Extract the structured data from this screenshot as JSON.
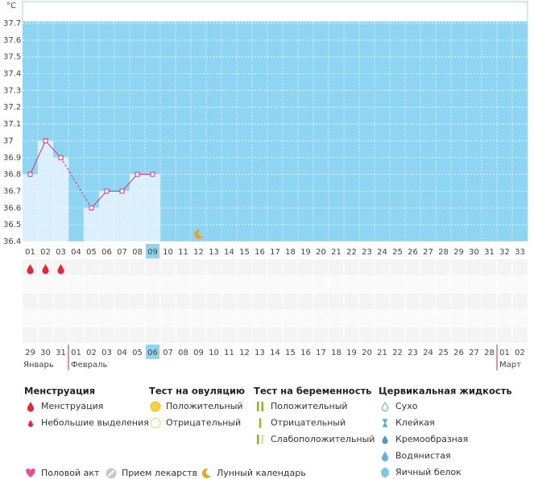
{
  "chart_data": {
    "type": "line",
    "unit_label": "°C",
    "categories": [
      "01",
      "02",
      "03",
      "04",
      "05",
      "06",
      "07",
      "08",
      "09",
      "10",
      "11",
      "12",
      "13",
      "14",
      "15",
      "16",
      "17",
      "18",
      "19",
      "20",
      "21",
      "22",
      "23",
      "24",
      "25",
      "26",
      "27",
      "28",
      "29",
      "30",
      "31",
      "32",
      "33"
    ],
    "values": [
      36.8,
      37,
      36.9,
      null,
      36.6,
      36.7,
      36.7,
      36.8,
      36.8,
      null,
      null,
      null,
      null,
      null,
      null,
      null,
      null,
      null,
      null,
      null,
      null,
      null,
      null,
      null,
      null,
      null,
      null,
      null,
      null,
      null,
      null,
      null,
      null
    ],
    "color": "#e0306a",
    "ylim": [
      36.4,
      37.7
    ],
    "yticks": [
      36.4,
      36.5,
      36.6,
      36.7,
      36.8,
      36.9,
      37,
      37.1,
      37.2,
      37.3,
      37.4,
      37.5,
      37.6,
      37.7
    ],
    "dates": [
      "29",
      "30",
      "31",
      "01",
      "02",
      "03",
      "04",
      "05",
      "06",
      "07",
      "08",
      "09",
      "10",
      "11",
      "12",
      "13",
      "14",
      "15",
      "16",
      "17",
      "18",
      "19",
      "20",
      "21",
      "22",
      "23",
      "24",
      "25",
      "26",
      "27",
      "28",
      "01",
      "02"
    ],
    "weekend_dates": [
      false,
      false,
      true,
      true,
      false,
      false,
      false,
      false,
      false,
      true,
      true,
      false,
      false,
      false,
      false,
      false,
      true,
      true,
      false,
      false,
      false,
      false,
      false,
      true,
      true,
      false,
      false,
      false,
      false,
      false,
      true,
      true,
      false
    ],
    "months": [
      {
        "name": "Январь",
        "start": "29"
      },
      {
        "name": "Февраль",
        "start": "01"
      },
      {
        "name": "Март",
        "start": "01"
      }
    ],
    "markers": {
      "menstruation": [
        "01",
        "02",
        "03"
      ],
      "moon": [
        "12"
      ]
    }
  },
  "legend": {
    "sections": [
      {
        "title": "Менструация",
        "items": [
          {
            "label": "Менструация",
            "icon": "drop"
          },
          {
            "label": "Небольшие выделения",
            "icon": "small-drop"
          }
        ]
      },
      {
        "title": "Тест на овуляцию",
        "items": [
          {
            "label": "Положительный",
            "icon": "yellow-circle"
          },
          {
            "label": "Отрицательный",
            "icon": "empty-circle"
          }
        ]
      },
      {
        "title": "Тест на беременность",
        "items": [
          {
            "label": "Положительный",
            "icon": "two-bars"
          },
          {
            "label": "Отрицательный",
            "icon": "one-bar"
          },
          {
            "label": "Слабоположительный",
            "icon": "weak-bars"
          }
        ]
      },
      {
        "title": "Цервикальная жидкость",
        "items": [
          {
            "label": "Сухо",
            "icon": "dry"
          },
          {
            "label": "Клейкая",
            "icon": "sticky"
          },
          {
            "label": "Кремообразная",
            "icon": "creamy"
          },
          {
            "label": "Водянистая",
            "icon": "watery"
          },
          {
            "label": "Яичный белок",
            "icon": "egg"
          }
        ]
      }
    ],
    "footer": [
      {
        "label": "Половой акт",
        "icon": "heart"
      },
      {
        "label": "Прием лекарств",
        "icon": "pill"
      },
      {
        "label": "Лунный календарь",
        "icon": "moon"
      }
    ]
  }
}
